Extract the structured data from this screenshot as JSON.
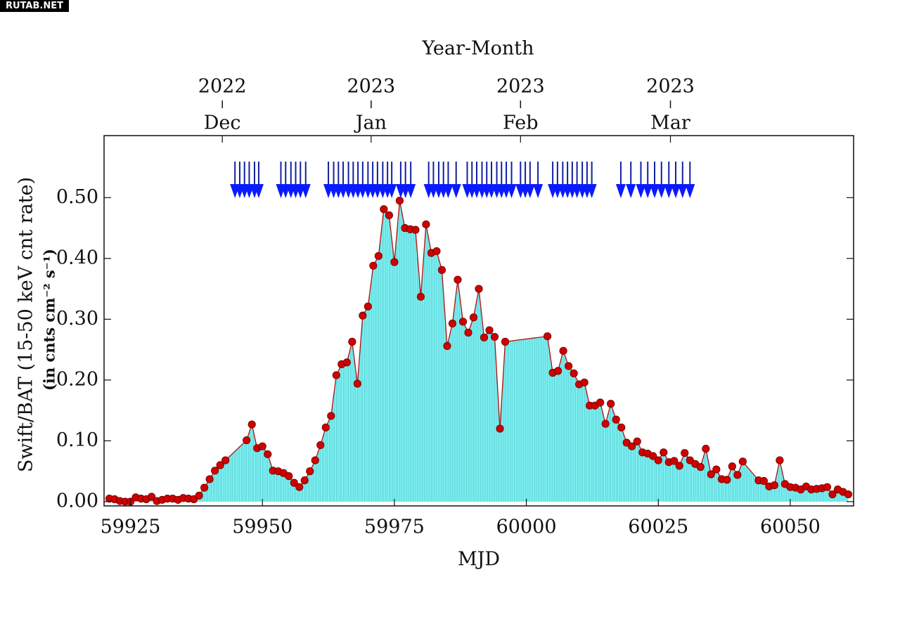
{
  "watermark": "RUTAB.NET",
  "chart_data": {
    "type": "area-line",
    "x_label": "MJD",
    "y_label": "Swift/BAT (15-50 keV cnt rate)",
    "y_sublabel": "(in cnts cm⁻² s⁻¹)",
    "top_label": "Year-Month",
    "xlim": [
      59920,
      60062
    ],
    "ylim": [
      -0.007,
      0.602
    ],
    "xticks": [
      59925,
      59950,
      59975,
      60000,
      60025,
      60050
    ],
    "yticks": [
      {
        "value": 0,
        "label": "0.00"
      },
      {
        "value": 0.1,
        "label": "0.10"
      },
      {
        "value": 0.2,
        "label": "0.20"
      },
      {
        "value": 0.3,
        "label": "0.30"
      },
      {
        "value": 0.4,
        "label": "0.40"
      },
      {
        "value": 0.5,
        "label": "0.50"
      }
    ],
    "top_ticks": [
      {
        "value": 59942.4,
        "year": "2022",
        "label": "Dec"
      },
      {
        "value": 59970.6,
        "year": "2023",
        "label": "Jan"
      },
      {
        "value": 59998.9,
        "year": "2023",
        "label": "Feb"
      },
      {
        "value": 60027.3,
        "year": "2023",
        "label": "Mar"
      }
    ],
    "fill_color": "#7ff3f3",
    "line_color": "#b01010",
    "marker_color": "#d00000",
    "x": [
      59921,
      59922,
      59923,
      59924,
      59925,
      59926,
      59927,
      59928,
      59929,
      59930,
      59931,
      59932,
      59933,
      59934,
      59935,
      59936,
      59937,
      59938,
      59939,
      59940,
      59941,
      59942,
      59943,
      59947,
      59948,
      59949,
      59950,
      59951,
      59952,
      59953,
      59954,
      59955,
      59956,
      59957,
      59958,
      59959,
      59960,
      59961,
      59962,
      59963,
      59964,
      59965,
      59966,
      59967,
      59968,
      59969,
      59970,
      59971,
      59972,
      59973,
      59974,
      59975,
      59976,
      59977,
      59978,
      59979,
      59980,
      59981,
      59982,
      59983,
      59984,
      59985,
      59986,
      59987,
      59988,
      59989,
      59990,
      59991,
      59992,
      59993,
      59994,
      59995,
      59996,
      60004,
      60005,
      60006,
      60007,
      60008,
      60009,
      60010,
      60011,
      60012,
      60013,
      60014,
      60015,
      60016,
      60017,
      60018,
      60019,
      60020,
      60021,
      60022,
      60023,
      60024,
      60025,
      60026,
      60027,
      60028,
      60029,
      60030,
      60031,
      60032,
      60033,
      60034,
      60035,
      60036,
      60037,
      60038,
      60039,
      60040,
      60041,
      60044,
      60045,
      60046,
      60047,
      60048,
      60049,
      60050,
      60051,
      60052,
      60053,
      60054,
      60055,
      60056,
      60057,
      60058,
      60059,
      60060,
      60061
    ],
    "values": [
      0.005,
      0.004,
      0.001,
      0,
      0,
      0.007,
      0.005,
      0.004,
      0.008,
      0.001,
      0.003,
      0.005,
      0.005,
      0.003,
      0.006,
      0.005,
      0.004,
      0.01,
      0.023,
      0.037,
      0.051,
      0.06,
      0.068,
      0.101,
      0.127,
      0.088,
      0.091,
      0.078,
      0.051,
      0.05,
      0.047,
      0.042,
      0.031,
      0.024,
      0.035,
      0.05,
      0.068,
      0.093,
      0.122,
      0.141,
      0.208,
      0.226,
      0.229,
      0.263,
      0.194,
      0.306,
      0.321,
      0.388,
      0.404,
      0.481,
      0.471,
      0.394,
      0.495,
      0.45,
      0.448,
      0.447,
      0.337,
      0.456,
      0.409,
      0.412,
      0.381,
      0.256,
      0.293,
      0.365,
      0.296,
      0.278,
      0.303,
      0.35,
      0.27,
      0.282,
      0.271,
      0.12,
      0.263,
      0.272,
      0.212,
      0.215,
      0.248,
      0.223,
      0.211,
      0.193,
      0.196,
      0.158,
      0.158,
      0.163,
      0.128,
      0.161,
      0.135,
      0.122,
      0.097,
      0.091,
      0.099,
      0.081,
      0.079,
      0.075,
      0.068,
      0.081,
      0.065,
      0.067,
      0.059,
      0.08,
      0.068,
      0.062,
      0.057,
      0.087,
      0.045,
      0.053,
      0.037,
      0.036,
      0.058,
      0.044,
      0.066,
      0.035,
      0.034,
      0.025,
      0.027,
      0.068,
      0.029,
      0.024,
      0.023,
      0.02,
      0.025,
      0.02,
      0.021,
      0.022,
      0.024,
      0.012,
      0.02,
      0.016,
      0.012
    ],
    "arrows": {
      "color": "#0a1aff",
      "x": [
        59944.8,
        59945.7,
        59946.6,
        59947.5,
        59948.5,
        59949.3,
        59953.5,
        59954.4,
        59955.4,
        59956.3,
        59957.2,
        59958.2,
        59962.5,
        59963.5,
        59964.4,
        59965.3,
        59966.3,
        59967.2,
        59968.1,
        59969.0,
        59970.0,
        59970.9,
        59971.8,
        59972.8,
        59973.7,
        59974.5,
        59976.2,
        59977.1,
        59978.1,
        59981.5,
        59982.4,
        59983.4,
        59984.3,
        59985.2,
        59986.7,
        59988.8,
        59989.7,
        59990.6,
        59991.6,
        59992.5,
        59993.4,
        59994.4,
        59995.3,
        59996.2,
        59997.2,
        59998.9,
        59999.8,
        60000.7,
        60002.2,
        60005.0,
        60005.9,
        60006.9,
        60007.8,
        60008.7,
        60009.6,
        60010.6,
        60011.5,
        60012.4,
        60017.9,
        60019.8,
        60021.7,
        60023.0,
        60024.3,
        60025.6,
        60027.0,
        60028.3,
        60029.6,
        60031.0
      ]
    }
  }
}
